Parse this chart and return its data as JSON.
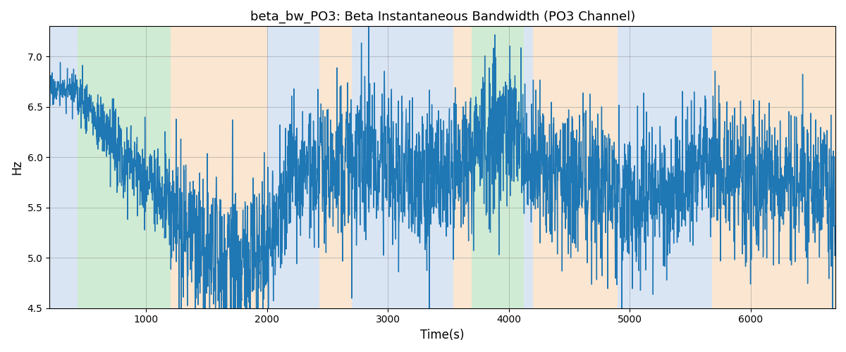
{
  "title": "beta_bw_PO3: Beta Instantaneous Bandwidth (PO3 Channel)",
  "xlabel": "Time(s)",
  "ylabel": "Hz",
  "ylim": [
    4.5,
    7.3
  ],
  "xlim": [
    200,
    6700
  ],
  "line_color": "#1f77b4",
  "line_width": 1.0,
  "grid": true,
  "background_color": "#ffffff",
  "bands": [
    {
      "xmin": 200,
      "xmax": 430,
      "color": "#aec6e8",
      "alpha": 0.45
    },
    {
      "xmin": 430,
      "xmax": 1200,
      "color": "#98d49e",
      "alpha": 0.45
    },
    {
      "xmin": 1200,
      "xmax": 2000,
      "color": "#f5c99a",
      "alpha": 0.45
    },
    {
      "xmin": 2000,
      "xmax": 2430,
      "color": "#aec6e8",
      "alpha": 0.45
    },
    {
      "xmin": 2430,
      "xmax": 2700,
      "color": "#f5c99a",
      "alpha": 0.45
    },
    {
      "xmin": 2700,
      "xmax": 3540,
      "color": "#aec6e8",
      "alpha": 0.45
    },
    {
      "xmin": 3540,
      "xmax": 3690,
      "color": "#f5c99a",
      "alpha": 0.45
    },
    {
      "xmin": 3690,
      "xmax": 4120,
      "color": "#98d49e",
      "alpha": 0.45
    },
    {
      "xmin": 4120,
      "xmax": 4200,
      "color": "#aec6e8",
      "alpha": 0.45
    },
    {
      "xmin": 4200,
      "xmax": 4900,
      "color": "#f5c99a",
      "alpha": 0.45
    },
    {
      "xmin": 4900,
      "xmax": 5680,
      "color": "#aec6e8",
      "alpha": 0.45
    },
    {
      "xmin": 5680,
      "xmax": 5900,
      "color": "#f5c99a",
      "alpha": 0.45
    },
    {
      "xmin": 5900,
      "xmax": 6700,
      "color": "#f5c99a",
      "alpha": 0.45
    }
  ],
  "seed": 17
}
